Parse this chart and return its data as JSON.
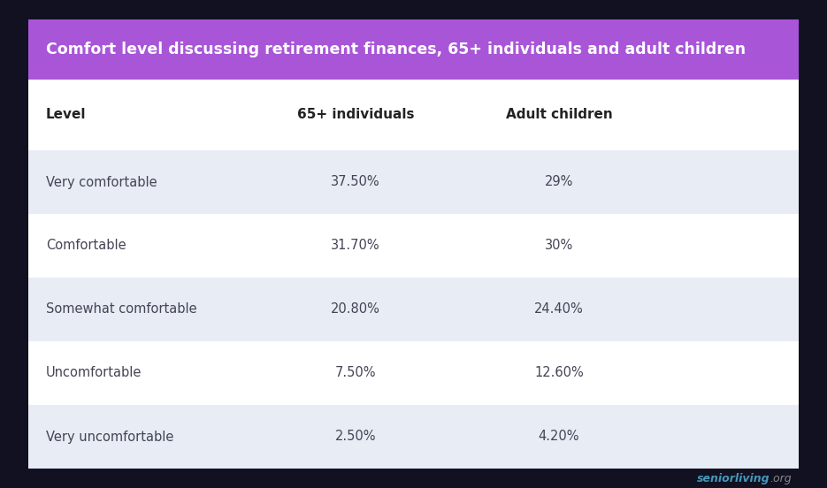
{
  "title": "Comfort level discussing retirement finances, 65+ individuals and adult children",
  "title_bg_color": "#a855d8",
  "title_text_color": "#ffffff",
  "table_bg_color": "#ffffff",
  "outer_bg_color": "#111122",
  "row_alt_color": "#e8ecf5",
  "row_normal_color": "#ffffff",
  "header_text_color": "#222222",
  "cell_text_color": "#444455",
  "columns": [
    "Level",
    "65+ individuals",
    "Adult children"
  ],
  "rows": [
    [
      "Very comfortable",
      "37.50%",
      "29%"
    ],
    [
      "Comfortable",
      "31.70%",
      "30%"
    ],
    [
      "Somewhat comfortable",
      "20.80%",
      "24.40%"
    ],
    [
      "Uncomfortable",
      "7.50%",
      "12.60%"
    ],
    [
      "Very uncomfortable",
      "2.50%",
      "4.20%"
    ]
  ],
  "shaded_rows": [
    0,
    2,
    4
  ],
  "watermark_text": "seniorliving",
  "watermark_suffix": ".org",
  "watermark_color": "#4499bb",
  "watermark_suffix_color": "#888888",
  "title_fontsize": 12.5,
  "header_fontsize": 11,
  "cell_fontsize": 10.5,
  "watermark_fontsize": 9
}
